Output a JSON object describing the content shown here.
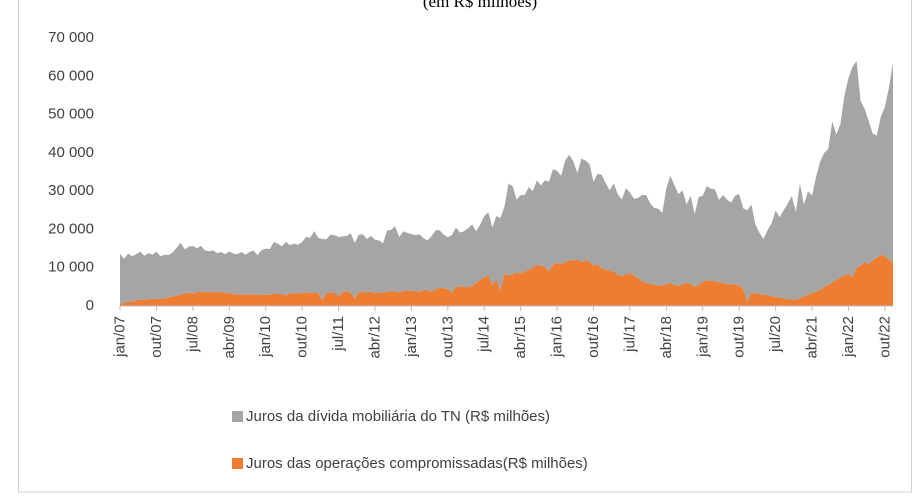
{
  "chart_data": {
    "type": "stacked_area",
    "title": "(em R$ milhões)",
    "categories": [
      "jan/07",
      null,
      null,
      null,
      null,
      null,
      null,
      null,
      null,
      "out/07",
      null,
      null,
      null,
      null,
      null,
      null,
      null,
      null,
      "jul/08",
      null,
      null,
      null,
      null,
      null,
      null,
      null,
      null,
      "abr/09",
      null,
      null,
      null,
      null,
      null,
      null,
      null,
      null,
      "jan/10",
      null,
      null,
      null,
      null,
      null,
      null,
      null,
      null,
      "out/10",
      null,
      null,
      null,
      null,
      null,
      null,
      null,
      null,
      "jul/11",
      null,
      null,
      null,
      null,
      null,
      null,
      null,
      null,
      "abr/12",
      null,
      null,
      null,
      null,
      null,
      null,
      null,
      null,
      "jan/13",
      null,
      null,
      null,
      null,
      null,
      null,
      null,
      null,
      "out/13",
      null,
      null,
      null,
      null,
      null,
      null,
      null,
      null,
      "jul/14",
      null,
      null,
      null,
      null,
      null,
      null,
      null,
      null,
      "abr/15",
      null,
      null,
      null,
      null,
      null,
      null,
      null,
      null,
      "jan/16",
      null,
      null,
      null,
      null,
      null,
      null,
      null,
      null,
      "out/16",
      null,
      null,
      null,
      null,
      null,
      null,
      null,
      null,
      "jul/17",
      null,
      null,
      null,
      null,
      null,
      null,
      null,
      null,
      "abr/18",
      null,
      null,
      null,
      null,
      null,
      null,
      null,
      null,
      "jan/19",
      null,
      null,
      null,
      null,
      null,
      null,
      null,
      null,
      "out/19",
      null,
      null,
      null,
      null,
      null,
      null,
      null,
      null,
      "jul/20",
      null,
      null,
      null,
      null,
      null,
      null,
      null,
      null,
      "abr/21",
      null,
      null,
      null,
      null,
      null,
      null,
      null,
      null,
      "jan/22",
      null,
      null,
      null,
      null,
      null,
      null,
      null,
      null,
      "out/22",
      null,
      null
    ],
    "series": [
      {
        "name": "Juros das operações compromissadas(R$ milhões)",
        "color": "#ed7d31",
        "values": [
          600,
          800,
          1200,
          1000,
          1500,
          1700,
          1600,
          1800,
          1900,
          1700,
          2000,
          1900,
          2300,
          2500,
          2700,
          3000,
          3300,
          3500,
          3200,
          3600,
          3700,
          3500,
          3800,
          3500,
          3800,
          3600,
          3500,
          3300,
          3200,
          3000,
          3100,
          2900,
          3100,
          3000,
          2800,
          3100,
          3000,
          2900,
          3200,
          3300,
          3100,
          2700,
          3400,
          3300,
          3500,
          3200,
          3600,
          3300,
          3600,
          3300,
          1500,
          3400,
          3600,
          3500,
          2500,
          3700,
          3800,
          3500,
          2000,
          3600,
          3700,
          3500,
          3800,
          3300,
          3600,
          3400,
          3700,
          3900,
          3800,
          3500,
          4000,
          4100,
          3800,
          4000,
          3700,
          4200,
          4100,
          3800,
          4300,
          4800,
          4600,
          4500,
          3500,
          5000,
          5200,
          5000,
          4800,
          5300,
          6000,
          6800,
          7500,
          8000,
          5500,
          7000,
          4000,
          8500,
          8000,
          8300,
          8800,
          8500,
          9000,
          9500,
          10000,
          10800,
          10500,
          10300,
          9000,
          10800,
          11300,
          11000,
          11500,
          12000,
          11800,
          12200,
          11500,
          12000,
          11600,
          10500,
          11000,
          9800,
          9600,
          9200,
          9000,
          8200,
          7800,
          8300,
          8600,
          8000,
          7200,
          6500,
          6000,
          5800,
          5600,
          5400,
          5300,
          5800,
          6000,
          5500,
          5200,
          5700,
          6000,
          5800,
          5000,
          5500,
          6300,
          6800,
          6600,
          6500,
          6200,
          6000,
          5800,
          5500,
          5900,
          5200,
          4500,
          1000,
          3500,
          3300,
          3100,
          3000,
          2800,
          2600,
          2400,
          2200,
          2000,
          1800,
          1700,
          1600,
          2000,
          2500,
          3000,
          3300,
          3800,
          4200,
          5000,
          5500,
          6200,
          6800,
          7500,
          8000,
          8500,
          7500,
          10000,
          10500,
          11500,
          10800,
          12000,
          12500,
          13500,
          13000,
          12000,
          11500
        ]
      },
      {
        "name": "Juros da dívida mobiliária do TN (R$ milhões)",
        "color": "#a5a5a5",
        "values": [
          13000,
          11500,
          12500,
          12000,
          12000,
          12500,
          11500,
          12000,
          11500,
          12500,
          11000,
          11500,
          11000,
          11500,
          12500,
          13500,
          11500,
          12000,
          12500,
          11500,
          12000,
          11000,
          10500,
          11000,
          10000,
          10500,
          10000,
          11000,
          10500,
          10500,
          11000,
          10500,
          11000,
          11500,
          10500,
          11500,
          12000,
          12000,
          13500,
          13000,
          12500,
          14000,
          12500,
          13000,
          12500,
          13500,
          14500,
          14500,
          16000,
          14500,
          16000,
          14000,
          15000,
          15000,
          15500,
          14500,
          14500,
          15500,
          14500,
          15000,
          15000,
          14000,
          14500,
          14000,
          13500,
          13000,
          16000,
          16000,
          17000,
          14500,
          15500,
          15000,
          15000,
          14500,
          15000,
          13500,
          13000,
          14500,
          15500,
          15000,
          14000,
          13500,
          15000,
          15500,
          14000,
          14500,
          15500,
          16000,
          13500,
          14500,
          16000,
          16500,
          15000,
          16500,
          19000,
          17500,
          24000,
          23000,
          19000,
          20500,
          20000,
          21500,
          20000,
          22000,
          21000,
          22500,
          23500,
          25000,
          24000,
          23000,
          26500,
          27500,
          26000,
          22500,
          27000,
          26000,
          25500,
          22000,
          23500,
          24500,
          22500,
          21000,
          23000,
          21000,
          20000,
          22500,
          21000,
          20000,
          21000,
          22500,
          23000,
          21000,
          20000,
          20000,
          19000,
          25000,
          28000,
          26000,
          24000,
          24500,
          20500,
          23000,
          19000,
          23000,
          22500,
          24500,
          24000,
          24000,
          21500,
          23000,
          22000,
          21500,
          23000,
          24000,
          21000,
          24000,
          23000,
          18000,
          16000,
          14500,
          17000,
          19000,
          22500,
          21000,
          23000,
          25000,
          27000,
          23000,
          30000,
          24000,
          27000,
          25500,
          30000,
          33500,
          35000,
          35500,
          42000,
          38000,
          40000,
          47000,
          51000,
          55000,
          54000,
          43000,
          40000,
          37500,
          33000,
          32000,
          36000,
          39000,
          45000,
          52000
        ]
      }
    ],
    "ylim": [
      0,
      70000
    ],
    "yticks": [
      0,
      {
        "value": 10000,
        "label": "10 000"
      },
      {
        "value": 20000,
        "label": "20 000"
      },
      {
        "value": 30000,
        "label": "30 000"
      },
      {
        "value": 40000,
        "label": "40 000"
      },
      {
        "value": 50000,
        "label": "50 000"
      },
      {
        "value": 60000,
        "label": "60 000"
      },
      {
        "value": 70000,
        "label": "70 000"
      }
    ],
    "grid": false,
    "legend": "bottom"
  }
}
